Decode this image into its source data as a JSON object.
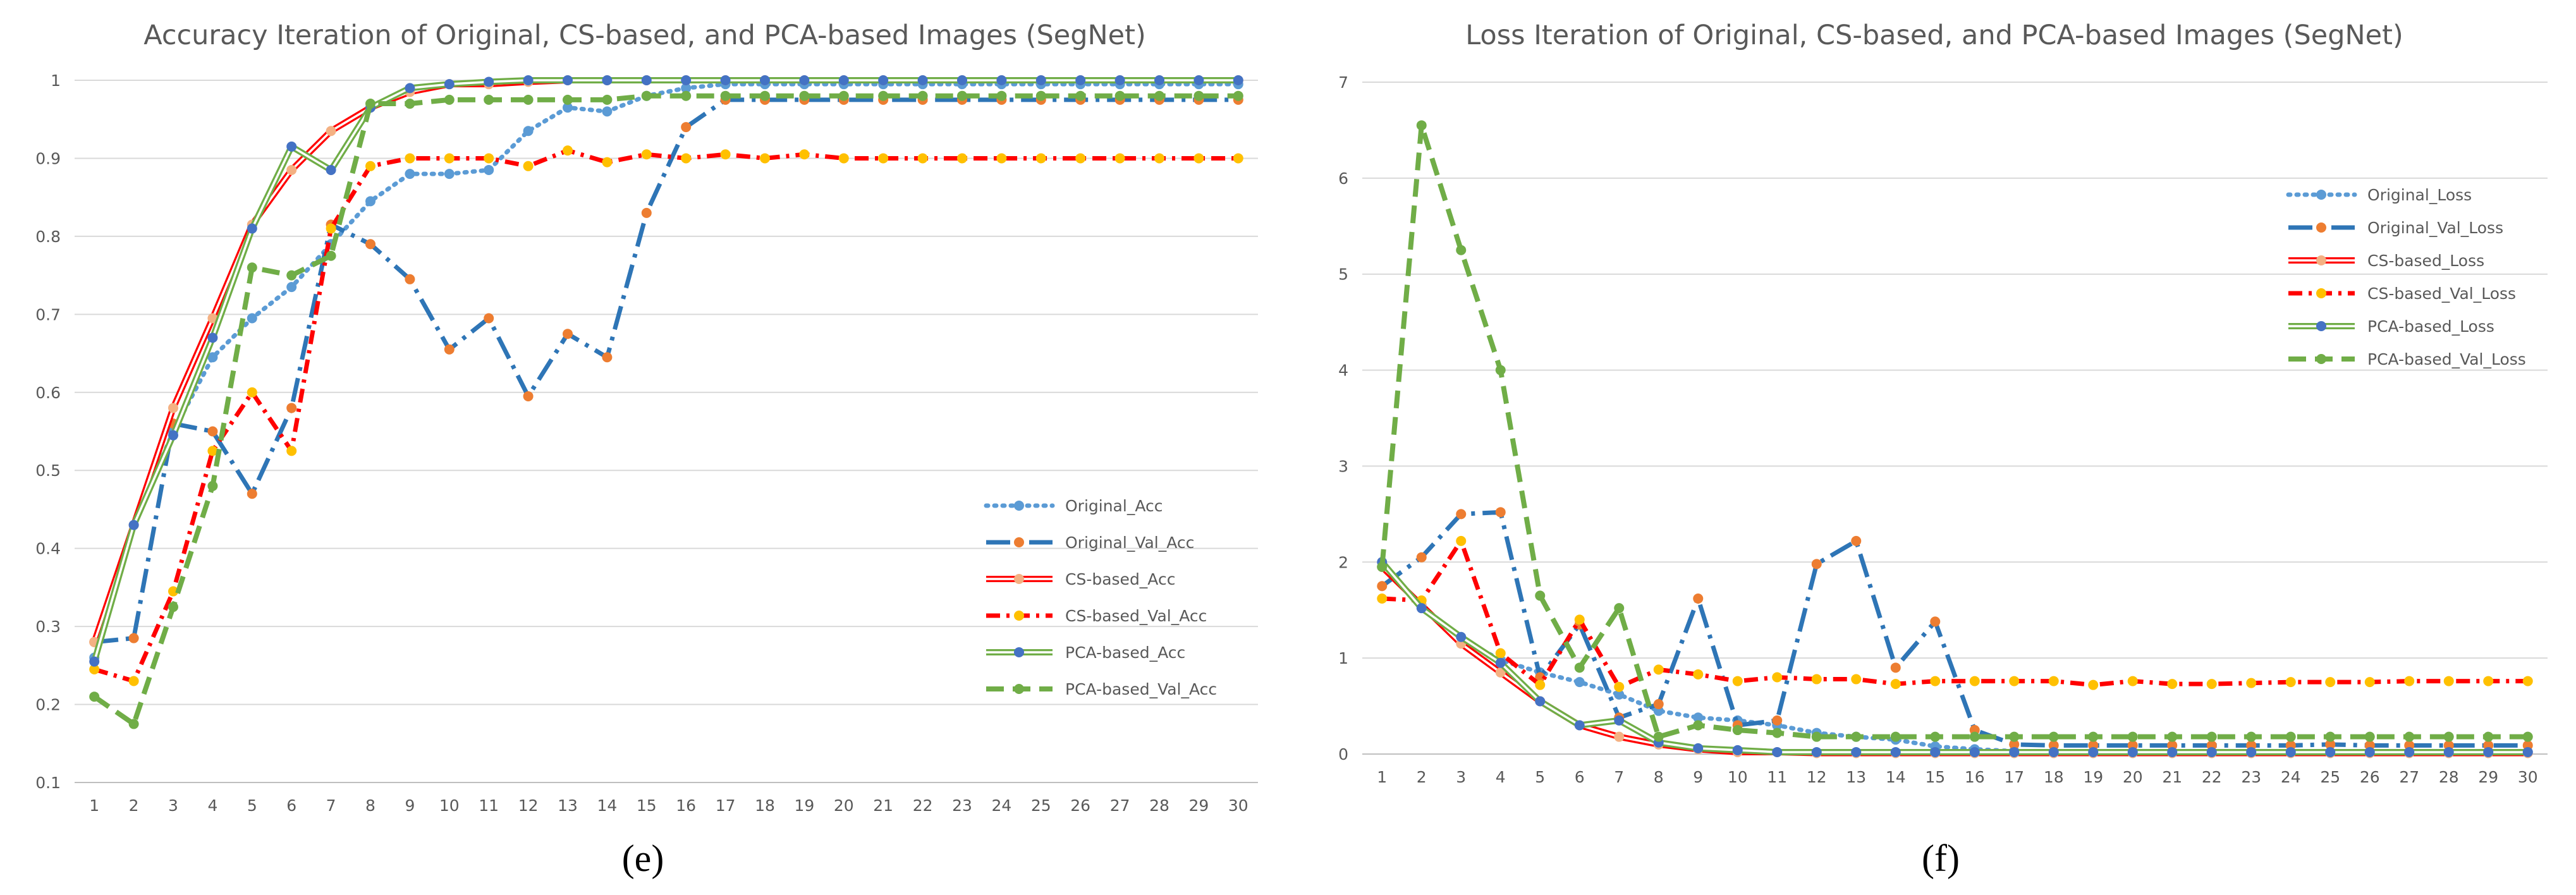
{
  "colors": {
    "original": "#5B9BD5",
    "original_val": "#2E75B6",
    "cs": "#FF0000",
    "cs_light": "#F4B183",
    "pca": "#70AD47",
    "pca_dark": "#4472C4",
    "marker_orange": "#ED7D31",
    "marker_yellow": "#FFC000",
    "marker_blue": "#4472C4",
    "marker_green": "#70AD47"
  },
  "chart_data": [
    {
      "type": "line",
      "caption": "(e)",
      "title": "Accuracy Iteration of Original, CS-based, and PCA-based Images (SegNet)",
      "xlabel": "",
      "ylabel": "",
      "categories": [
        "1",
        "2",
        "3",
        "4",
        "5",
        "6",
        "7",
        "8",
        "9",
        "10",
        "11",
        "12",
        "13",
        "14",
        "15",
        "16",
        "17",
        "18",
        "19",
        "20",
        "21",
        "22",
        "23",
        "24",
        "25",
        "26",
        "27",
        "28",
        "29",
        "30"
      ],
      "ylim": [
        0.1,
        1.0
      ],
      "yticks": [
        "0.1",
        "0.2",
        "0.3",
        "0.4",
        "0.5",
        "0.6",
        "0.7",
        "0.8",
        "0.9",
        "1"
      ],
      "legend_position": "right-bottom",
      "series": [
        {
          "name": "Original_Acc",
          "style": "dotted",
          "values": [
            0.26,
            0.43,
            0.55,
            0.645,
            0.695,
            0.735,
            0.79,
            0.845,
            0.88,
            0.88,
            0.885,
            0.935,
            0.965,
            0.96,
            0.98,
            0.99,
            0.995,
            0.995,
            0.995,
            0.995,
            0.995,
            0.995,
            0.995,
            0.995,
            0.995,
            0.995,
            0.995,
            0.995,
            0.995,
            0.995
          ]
        },
        {
          "name": "Original_Val_Acc",
          "style": "dashdot",
          "values": [
            0.28,
            0.285,
            0.56,
            0.55,
            0.47,
            0.58,
            0.815,
            0.79,
            0.745,
            0.655,
            0.695,
            0.595,
            0.675,
            0.645,
            0.83,
            0.94,
            0.975,
            0.975,
            0.975,
            0.975,
            0.975,
            0.975,
            0.975,
            0.975,
            0.975,
            0.975,
            0.975,
            0.975,
            0.975,
            0.975
          ]
        },
        {
          "name": "CS-based_Acc",
          "style": "double",
          "values": [
            0.28,
            0.43,
            0.58,
            0.695,
            0.815,
            0.885,
            0.935,
            0.965,
            0.985,
            0.995,
            0.995,
            0.998,
            1.0,
            1.0,
            1.0,
            1.0,
            1.0,
            1.0,
            1.0,
            1.0,
            1.0,
            1.0,
            1.0,
            1.0,
            1.0,
            1.0,
            1.0,
            1.0,
            1.0,
            1.0
          ]
        },
        {
          "name": "CS-based_Val_Acc",
          "style": "dashdot",
          "values": [
            0.245,
            0.23,
            0.345,
            0.525,
            0.6,
            0.525,
            0.81,
            0.89,
            0.9,
            0.9,
            0.9,
            0.89,
            0.91,
            0.895,
            0.905,
            0.9,
            0.905,
            0.9,
            0.905,
            0.9,
            0.9,
            0.9,
            0.9,
            0.9,
            0.9,
            0.9,
            0.9,
            0.9,
            0.9,
            0.9
          ]
        },
        {
          "name": "PCA-based_Acc",
          "style": "double",
          "values": [
            0.255,
            0.43,
            0.545,
            0.67,
            0.81,
            0.915,
            0.885,
            0.965,
            0.99,
            0.995,
            0.998,
            1.0,
            1.0,
            1.0,
            1.0,
            1.0,
            1.0,
            1.0,
            1.0,
            1.0,
            1.0,
            1.0,
            1.0,
            1.0,
            1.0,
            1.0,
            1.0,
            1.0,
            1.0,
            1.0
          ]
        },
        {
          "name": "PCA-based_Val_Acc",
          "style": "dashed",
          "values": [
            0.21,
            0.175,
            0.325,
            0.48,
            0.76,
            0.75,
            0.775,
            0.97,
            0.97,
            0.975,
            0.975,
            0.975,
            0.975,
            0.975,
            0.98,
            0.98,
            0.98,
            0.98,
            0.98,
            0.98,
            0.98,
            0.98,
            0.98,
            0.98,
            0.98,
            0.98,
            0.98,
            0.98,
            0.98,
            0.98
          ]
        }
      ]
    },
    {
      "type": "line",
      "caption": "(f)",
      "title": "Loss Iteration of Original, CS-based, and PCA-based Images (SegNet)",
      "xlabel": "",
      "ylabel": "",
      "categories": [
        "1",
        "2",
        "3",
        "4",
        "5",
        "6",
        "7",
        "8",
        "9",
        "10",
        "11",
        "12",
        "13",
        "14",
        "15",
        "16",
        "17",
        "18",
        "19",
        "20",
        "21",
        "22",
        "23",
        "24",
        "25",
        "26",
        "27",
        "28",
        "29",
        "30"
      ],
      "ylim": [
        0,
        7
      ],
      "yticks": [
        "0",
        "1",
        "2",
        "3",
        "4",
        "5",
        "6",
        "7"
      ],
      "legend_position": "right-top",
      "series": [
        {
          "name": "Original_Loss",
          "style": "dotted",
          "values": [
            1.95,
            1.55,
            1.2,
            0.98,
            0.85,
            0.75,
            0.62,
            0.45,
            0.38,
            0.35,
            0.3,
            0.22,
            0.18,
            0.15,
            0.08,
            0.05,
            0.03,
            0.02,
            0.02,
            0.02,
            0.02,
            0.02,
            0.02,
            0.02,
            0.02,
            0.02,
            0.02,
            0.02,
            0.02,
            0.02
          ]
        },
        {
          "name": "Original_Val_Loss",
          "style": "dashdot",
          "values": [
            1.75,
            2.05,
            2.5,
            2.52,
            0.8,
            1.35,
            0.38,
            0.52,
            1.62,
            0.3,
            0.35,
            1.98,
            2.22,
            0.9,
            1.38,
            0.25,
            0.1,
            0.09,
            0.09,
            0.09,
            0.09,
            0.09,
            0.09,
            0.09,
            0.1,
            0.09,
            0.09,
            0.09,
            0.09,
            0.09
          ]
        },
        {
          "name": "CS-based_Loss",
          "style": "double",
          "values": [
            1.95,
            1.55,
            1.15,
            0.85,
            0.55,
            0.3,
            0.18,
            0.1,
            0.05,
            0.02,
            0.02,
            0.01,
            0.01,
            0.01,
            0.01,
            0.01,
            0.01,
            0.01,
            0.01,
            0.01,
            0.01,
            0.01,
            0.01,
            0.01,
            0.01,
            0.01,
            0.01,
            0.01,
            0.01,
            0.01
          ]
        },
        {
          "name": "CS-based_Val_Loss",
          "style": "dashdot",
          "values": [
            1.62,
            1.6,
            2.22,
            1.05,
            0.72,
            1.4,
            0.7,
            0.88,
            0.83,
            0.76,
            0.8,
            0.78,
            0.78,
            0.73,
            0.76,
            0.76,
            0.76,
            0.76,
            0.72,
            0.76,
            0.73,
            0.73,
            0.74,
            0.75,
            0.75,
            0.75,
            0.76,
            0.76,
            0.76,
            0.76
          ]
        },
        {
          "name": "PCA-based_Loss",
          "style": "double",
          "values": [
            2.0,
            1.52,
            1.22,
            0.95,
            0.55,
            0.3,
            0.35,
            0.12,
            0.06,
            0.04,
            0.02,
            0.02,
            0.02,
            0.02,
            0.02,
            0.02,
            0.02,
            0.02,
            0.02,
            0.02,
            0.02,
            0.02,
            0.02,
            0.02,
            0.02,
            0.02,
            0.02,
            0.02,
            0.02,
            0.02
          ]
        },
        {
          "name": "PCA-based_Val_Loss",
          "style": "dashed",
          "values": [
            1.95,
            6.55,
            5.25,
            4.0,
            1.65,
            0.9,
            1.52,
            0.18,
            0.3,
            0.25,
            0.22,
            0.18,
            0.18,
            0.18,
            0.18,
            0.18,
            0.18,
            0.18,
            0.18,
            0.18,
            0.18,
            0.18,
            0.18,
            0.18,
            0.18,
            0.18,
            0.18,
            0.18,
            0.18,
            0.18
          ]
        }
      ]
    }
  ]
}
